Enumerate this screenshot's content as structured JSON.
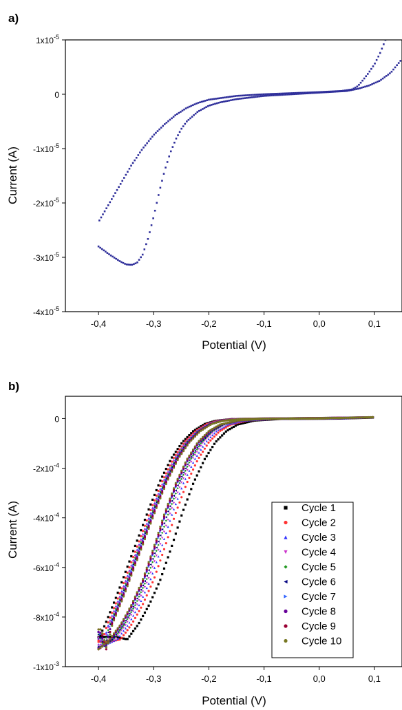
{
  "panels": [
    {
      "label": "a)",
      "xlabel": "Potential (V)",
      "ylabel": "Current (A)",
      "xticks": [
        {
          "v": -0.4,
          "t": "-0,4"
        },
        {
          "v": -0.3,
          "t": "-0,3"
        },
        {
          "v": -0.2,
          "t": "-0,2"
        },
        {
          "v": -0.1,
          "t": "-0,1"
        },
        {
          "v": 0.0,
          "t": "0,0"
        },
        {
          "v": 0.1,
          "t": "0,1"
        }
      ],
      "yticks": [
        {
          "v": 1e-05,
          "m": "1x10",
          "e": "-5"
        },
        {
          "v": 0,
          "m": "0",
          "e": ""
        },
        {
          "v": -1e-05,
          "m": "-1x10",
          "e": "-5"
        },
        {
          "v": -2e-05,
          "m": "-2x10",
          "e": "-5"
        },
        {
          "v": -3e-05,
          "m": "-3x10",
          "e": "-5"
        },
        {
          "v": -4e-05,
          "m": "-4x10",
          "e": "-5"
        }
      ]
    },
    {
      "label": "b)",
      "xlabel": "Potential (V)",
      "ylabel": "Current (A)",
      "xticks": [
        {
          "v": -0.4,
          "t": "-0,4"
        },
        {
          "v": -0.3,
          "t": "-0,3"
        },
        {
          "v": -0.2,
          "t": "-0,2"
        },
        {
          "v": -0.1,
          "t": "-0,1"
        },
        {
          "v": 0.0,
          "t": "0,0"
        },
        {
          "v": 0.1,
          "t": "0,1"
        }
      ],
      "yticks": [
        {
          "v": 0,
          "m": "0",
          "e": ""
        },
        {
          "v": -0.0002,
          "m": "-2x10",
          "e": "-4"
        },
        {
          "v": -0.0004,
          "m": "-4x10",
          "e": "-4"
        },
        {
          "v": -0.0006,
          "m": "-6x10",
          "e": "-4"
        },
        {
          "v": -0.0008,
          "m": "-8x10",
          "e": "-4"
        },
        {
          "v": -0.001,
          "m": "-1x10",
          "e": "-3"
        }
      ]
    }
  ],
  "chart_data": [
    {
      "type": "scatter",
      "title": "",
      "xlabel": "Potential (V)",
      "ylabel": "Current (A)",
      "xlim": [
        -0.46,
        0.15
      ],
      "ylim": [
        -4e-05,
        1e-05
      ],
      "grid": false,
      "series": [
        {
          "color": "#2e2e9a",
          "forward": {
            "x": [
              -0.4,
              -0.38,
              -0.36,
              -0.35,
              -0.34,
              -0.33,
              -0.32,
              -0.31,
              -0.3,
              -0.29,
              -0.28,
              -0.27,
              -0.26,
              -0.25,
              -0.24,
              -0.22,
              -0.2,
              -0.18,
              -0.15,
              -0.1,
              -0.05,
              0.0,
              0.05,
              0.07,
              0.09,
              0.11,
              0.13,
              0.15
            ],
            "y": [
              -2.8e-05,
              -2.95e-05,
              -3.08e-05,
              -3.13e-05,
              -3.14e-05,
              -3.1e-05,
              -2.95e-05,
              -2.65e-05,
              -2.25e-05,
              -1.8e-05,
              -1.4e-05,
              -1.08e-05,
              -8.3e-06,
              -6.4e-06,
              -5e-06,
              -3.2e-06,
              -2.1e-06,
              -1.5e-06,
              -9e-07,
              -3e-07,
              0,
              3e-07,
              6e-07,
              1e-06,
              1.6e-06,
              2.5e-06,
              4e-06,
              6.5e-06
            ]
          },
          "reverse": {
            "x": [
              0.12,
              0.11,
              0.1,
              0.09,
              0.08,
              0.07,
              0.06,
              0.04,
              0.02,
              0.0,
              -0.05,
              -0.1,
              -0.15,
              -0.2,
              -0.22,
              -0.24,
              -0.26,
              -0.28,
              -0.3,
              -0.32,
              -0.34,
              -0.36,
              -0.38,
              -0.4
            ],
            "y": [
              1e-05,
              7.5e-06,
              5.5e-06,
              4e-06,
              2.7e-06,
              1.5e-06,
              9e-07,
              6e-07,
              5e-07,
              4e-07,
              2e-07,
              0,
              -3e-07,
              -1e-06,
              -1.6e-06,
              -2.5e-06,
              -3.8e-06,
              -5.5e-06,
              -7.5e-06,
              -1e-05,
              -1.3e-05,
              -1.65e-05,
              -2e-05,
              -2.35e-05
            ]
          }
        }
      ]
    },
    {
      "type": "scatter",
      "title": "",
      "xlabel": "Potential (V)",
      "ylabel": "Current (A)",
      "xlim": [
        -0.46,
        0.15
      ],
      "ylim": [
        -0.001,
        9e-05
      ],
      "grid": false,
      "legend": "bottom-right inside plot",
      "series": [
        {
          "name": "Cycle 1",
          "color": "#000000",
          "marker": "square",
          "forward_shift": 0.032,
          "reverse_shift": 0.008,
          "peak": -0.00088,
          "start": -0.00089
        },
        {
          "name": "Cycle 2",
          "color": "#ff3333",
          "marker": "circle",
          "forward_shift": 0.02,
          "reverse_shift": 0.004,
          "peak": -0.0009,
          "start": -0.00089
        },
        {
          "name": "Cycle 3",
          "color": "#3333ff",
          "marker": "triangle-up",
          "forward_shift": 0.014,
          "reverse_shift": 0.002,
          "peak": -0.00091,
          "start": -0.00088
        },
        {
          "name": "Cycle 4",
          "color": "#cc33cc",
          "marker": "triangle-down",
          "forward_shift": 0.01,
          "reverse_shift": 0.001,
          "peak": -0.000915,
          "start": -0.00088
        },
        {
          "name": "Cycle 5",
          "color": "#229922",
          "marker": "diamond",
          "forward_shift": 0.007,
          "reverse_shift": 0.0,
          "peak": -0.00092,
          "start": -0.00087
        },
        {
          "name": "Cycle 6",
          "color": "#000080",
          "marker": "triangle-left",
          "forward_shift": 0.005,
          "reverse_shift": -0.001,
          "peak": -0.00092,
          "start": -0.00087
        },
        {
          "name": "Cycle 7",
          "color": "#3366ff",
          "marker": "triangle-right",
          "forward_shift": 0.003,
          "reverse_shift": -0.002,
          "peak": -0.000925,
          "start": -0.00086
        },
        {
          "name": "Cycle 8",
          "color": "#660099",
          "marker": "hexagon",
          "forward_shift": 0.002,
          "reverse_shift": -0.003,
          "peak": -0.000925,
          "start": -0.00086
        },
        {
          "name": "Cycle 9",
          "color": "#990033",
          "marker": "circle",
          "forward_shift": 0.001,
          "reverse_shift": -0.004,
          "peak": -0.00093,
          "start": -0.00085
        },
        {
          "name": "Cycle 10",
          "color": "#777722",
          "marker": "pentagon",
          "forward_shift": 0.0,
          "reverse_shift": -0.005,
          "peak": -0.00093,
          "start": -0.00085
        }
      ]
    }
  ]
}
